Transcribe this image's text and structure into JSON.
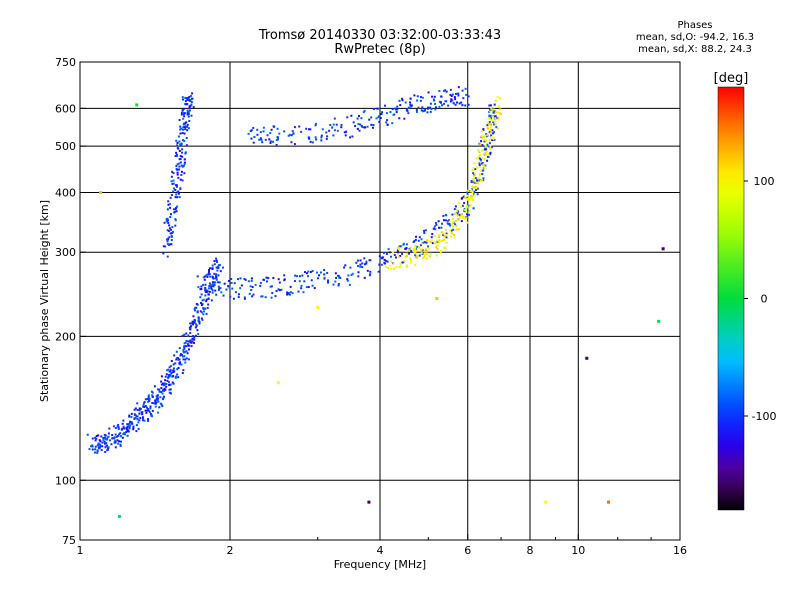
{
  "header": {
    "title": "Tromsø 20140330 03:32:00-03:33:43",
    "subtitle": "RwPretec (8p)"
  },
  "phases": {
    "heading": "Phases",
    "o_line": "mean, sd,O: -94.2, 16.3",
    "x_line": "mean, sd,X:  88.2, 24.3"
  },
  "colorbar": {
    "unit": "[deg]",
    "range": [
      -180,
      180
    ],
    "ticks": [
      "100",
      "0",
      "-100"
    ],
    "tick_values": [
      100,
      0,
      -100
    ]
  },
  "chart_data": {
    "type": "scatter",
    "xlabel": "Frequency [MHz]",
    "ylabel": "Stationary phase Virtual Height [km]",
    "xscale": "log",
    "yscale": "log",
    "xlim": [
      1,
      16
    ],
    "ylim": [
      75,
      750
    ],
    "xticks": [
      1,
      2,
      4,
      6,
      8,
      10,
      16
    ],
    "xtick_labels": [
      "1",
      "2",
      "4",
      "6",
      "8",
      "10",
      "16"
    ],
    "yticks": [
      75,
      100,
      200,
      300,
      400,
      500,
      600,
      750
    ],
    "ytick_labels": [
      "75",
      "100",
      "200",
      "300",
      "400",
      "500",
      "600",
      "750"
    ],
    "xgrid": [
      2,
      4,
      6,
      8,
      10
    ],
    "ygrid": [
      100,
      200,
      300,
      400,
      500,
      600
    ],
    "grid": true,
    "traces": [
      {
        "name": "",
        "phase": -100,
        "points": [
          [
            1.05,
            120
          ],
          [
            1.1,
            118
          ],
          [
            1.15,
            122
          ],
          [
            1.2,
            125
          ],
          [
            1.25,
            130
          ],
          [
            1.3,
            135
          ],
          [
            1.35,
            140
          ],
          [
            1.4,
            145
          ],
          [
            1.45,
            152
          ],
          [
            1.5,
            160
          ],
          [
            1.55,
            170
          ],
          [
            1.6,
            180
          ],
          [
            1.65,
            195
          ],
          [
            1.7,
            210
          ],
          [
            1.75,
            230
          ],
          [
            1.8,
            250
          ],
          [
            1.85,
            265
          ],
          [
            1.9,
            280
          ]
        ]
      },
      {
        "name": "",
        "phase": -100,
        "points": [
          [
            1.5,
            300
          ],
          [
            1.52,
            350
          ],
          [
            1.55,
            400
          ],
          [
            1.58,
            450
          ],
          [
            1.6,
            500
          ],
          [
            1.62,
            560
          ],
          [
            1.64,
            610
          ],
          [
            1.66,
            630
          ]
        ]
      },
      {
        "name": "",
        "phase": -100,
        "points": [
          [
            1.75,
            260
          ],
          [
            2.0,
            252
          ],
          [
            2.3,
            252
          ],
          [
            2.6,
            256
          ],
          [
            3.0,
            262
          ],
          [
            3.5,
            270
          ],
          [
            4.0,
            285
          ],
          [
            4.5,
            300
          ],
          [
            5.0,
            318
          ],
          [
            5.5,
            345
          ],
          [
            6.0,
            380
          ],
          [
            6.3,
            430
          ],
          [
            6.5,
            490
          ],
          [
            6.7,
            560
          ],
          [
            6.8,
            610
          ]
        ]
      },
      {
        "name": "",
        "phase": -100,
        "points": [
          [
            2.2,
            520
          ],
          [
            2.5,
            525
          ],
          [
            3.0,
            535
          ],
          [
            3.5,
            550
          ],
          [
            4.0,
            575
          ],
          [
            4.5,
            600
          ],
          [
            5.0,
            620
          ],
          [
            5.5,
            630
          ],
          [
            6.0,
            635
          ]
        ]
      },
      {
        "name": "",
        "phase": 100,
        "points": [
          [
            4.2,
            290
          ],
          [
            4.6,
            295
          ],
          [
            5.0,
            305
          ],
          [
            5.4,
            325
          ],
          [
            5.8,
            350
          ],
          [
            6.1,
            390
          ],
          [
            6.3,
            440
          ],
          [
            6.5,
            500
          ],
          [
            6.7,
            560
          ],
          [
            6.9,
            620
          ]
        ]
      }
    ],
    "scatter": [
      {
        "x": 1.1,
        "y": 400,
        "phase": 120
      },
      {
        "x": 1.3,
        "y": 610,
        "phase": 0
      },
      {
        "x": 2.5,
        "y": 160,
        "phase": 100
      },
      {
        "x": 3.0,
        "y": 230,
        "phase": 100
      },
      {
        "x": 5.2,
        "y": 240,
        "phase": 120
      },
      {
        "x": 8.6,
        "y": 90,
        "phase": 100
      },
      {
        "x": 10.4,
        "y": 180,
        "phase": -160
      },
      {
        "x": 11.5,
        "y": 90,
        "phase": 150
      },
      {
        "x": 14.5,
        "y": 215,
        "phase": 0
      },
      {
        "x": 14.8,
        "y": 305,
        "phase": -160
      },
      {
        "x": 3.8,
        "y": 90,
        "phase": -160
      },
      {
        "x": 1.2,
        "y": 84,
        "phase": -30
      }
    ]
  }
}
